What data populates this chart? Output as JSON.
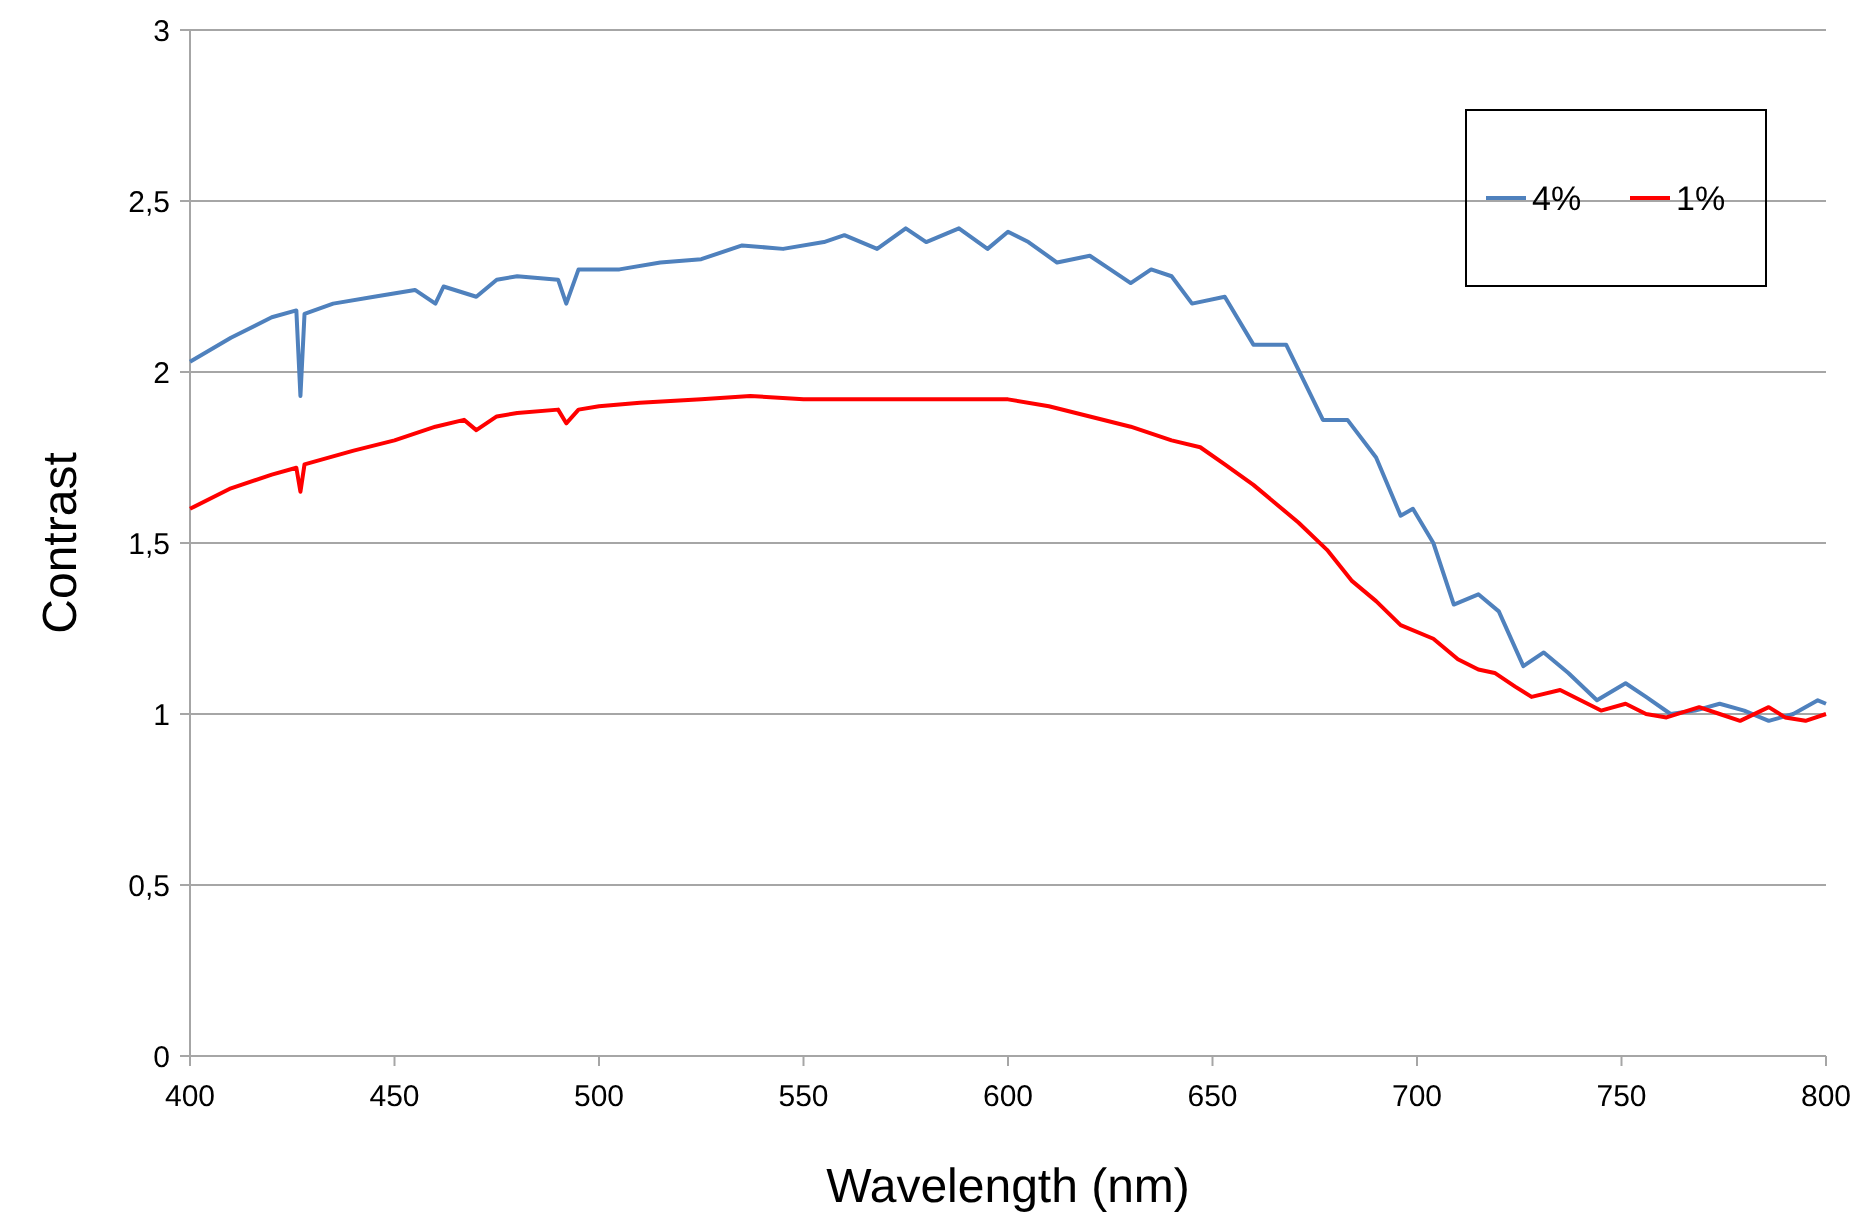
{
  "chart_data": {
    "type": "line",
    "xlabel": "Wavelength (nm)",
    "ylabel": "Contrast",
    "xlim": [
      400,
      800
    ],
    "ylim": [
      0,
      3
    ],
    "xticks": [
      400,
      450,
      500,
      550,
      600,
      650,
      700,
      750,
      800
    ],
    "yticks": [
      0,
      {
        "value": 0.5,
        "label": "0,5"
      },
      1,
      {
        "value": 1.5,
        "label": "1,5"
      },
      2,
      {
        "value": 2.5,
        "label": "2,5"
      },
      3
    ],
    "grid": "y",
    "legend": "top right",
    "marker": "none",
    "line_style": "solid",
    "series": [
      {
        "name": "4%",
        "color": "#4f81bd",
        "x": [
          400,
          410,
          420,
          426,
          427,
          428,
          435,
          445,
          455,
          460,
          462,
          470,
          475,
          480,
          490,
          492,
          495,
          505,
          515,
          525,
          535,
          545,
          555,
          560,
          568,
          575,
          580,
          588,
          595,
          600,
          605,
          612,
          620,
          625,
          630,
          635,
          640,
          645,
          653,
          660,
          668,
          677,
          683,
          690,
          696,
          699,
          704,
          709,
          715,
          720,
          726,
          731,
          737,
          744,
          751,
          756,
          762,
          768,
          774,
          780,
          786,
          792,
          798,
          800
        ],
        "values": [
          2.03,
          2.1,
          2.16,
          2.18,
          1.93,
          2.17,
          2.2,
          2.22,
          2.24,
          2.2,
          2.25,
          2.22,
          2.27,
          2.28,
          2.27,
          2.2,
          2.3,
          2.3,
          2.32,
          2.33,
          2.37,
          2.36,
          2.38,
          2.4,
          2.36,
          2.42,
          2.38,
          2.42,
          2.36,
          2.41,
          2.38,
          2.32,
          2.34,
          2.3,
          2.26,
          2.3,
          2.28,
          2.2,
          2.22,
          2.08,
          2.08,
          1.86,
          1.86,
          1.75,
          1.58,
          1.6,
          1.5,
          1.32,
          1.35,
          1.3,
          1.14,
          1.18,
          1.12,
          1.04,
          1.09,
          1.05,
          1.0,
          1.01,
          1.03,
          1.01,
          0.98,
          1.0,
          1.04,
          1.03
        ]
      },
      {
        "name": "1%",
        "color": "#ff0000",
        "x": [
          400,
          410,
          420,
          426,
          427,
          428,
          440,
          450,
          460,
          467,
          470,
          475,
          480,
          490,
          492,
          495,
          500,
          510,
          525,
          537,
          550,
          575,
          600,
          610,
          620,
          630,
          640,
          647,
          653,
          660,
          665,
          671,
          678,
          684,
          690,
          696,
          704,
          710,
          715,
          719,
          724,
          728,
          735,
          740,
          745,
          751,
          756,
          761,
          769,
          774,
          779,
          786,
          790,
          795,
          800
        ],
        "values": [
          1.6,
          1.66,
          1.7,
          1.72,
          1.65,
          1.73,
          1.77,
          1.8,
          1.84,
          1.86,
          1.83,
          1.87,
          1.88,
          1.89,
          1.85,
          1.89,
          1.9,
          1.91,
          1.92,
          1.93,
          1.92,
          1.92,
          1.92,
          1.9,
          1.87,
          1.84,
          1.8,
          1.78,
          1.73,
          1.67,
          1.62,
          1.56,
          1.48,
          1.39,
          1.33,
          1.26,
          1.22,
          1.16,
          1.13,
          1.12,
          1.08,
          1.05,
          1.07,
          1.04,
          1.01,
          1.03,
          1.0,
          0.99,
          1.02,
          1.0,
          0.98,
          1.02,
          0.99,
          0.98,
          1.0
        ]
      }
    ]
  }
}
